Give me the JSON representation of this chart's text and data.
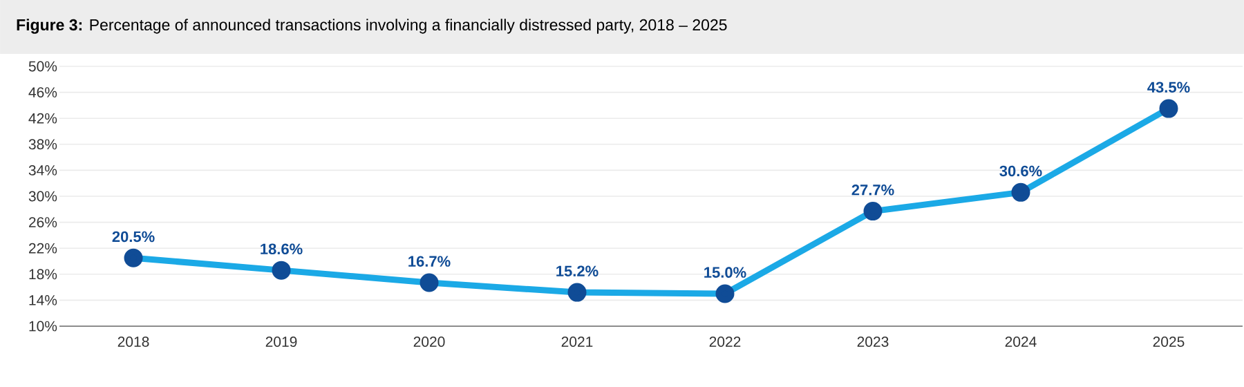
{
  "chart_data": {
    "type": "line",
    "title": "**Figure 3:** Percentage of announced transactions involving a financially distressed party, 2018 – 2025",
    "categories": [
      "2018",
      "2019",
      "2020",
      "2021",
      "2022",
      "2023",
      "2024",
      "2025"
    ],
    "series": [
      {
        "color": "#1ba9e6",
        "values": [
          20.5,
          18.6,
          16.7,
          15.2,
          15.0,
          27.7,
          30.6,
          43.5
        ],
        "value_labels": [
          "20.5%",
          "18.6%",
          "16.7%",
          "15.2%",
          "15.0%",
          "27.7%",
          "30.6%",
          "43.5%"
        ]
      }
    ],
    "ylim": [
      10,
      50
    ],
    "yticks": [
      {
        "value": 10,
        "label": "10%"
      },
      {
        "value": 14,
        "label": "14%"
      },
      {
        "value": 18,
        "label": "18%"
      },
      {
        "value": 22,
        "label": "22%"
      },
      {
        "value": 26,
        "label": "26%"
      },
      {
        "value": 30,
        "label": "30%"
      },
      {
        "value": 34,
        "label": "34%"
      },
      {
        "value": 38,
        "label": "38%"
      },
      {
        "value": 42,
        "label": "42%"
      },
      {
        "value": 46,
        "label": "46%"
      },
      {
        "value": 50,
        "label": "50%"
      }
    ],
    "grid": "y",
    "marker": "circle",
    "line_style": "solid"
  }
}
